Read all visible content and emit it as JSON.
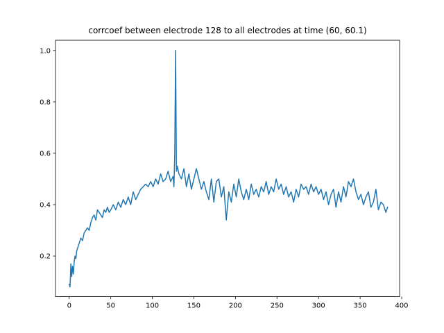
{
  "chart_data": {
    "type": "line",
    "title": "corrcoef between electrode 128 to all electrodes at time (60, 60.1)",
    "xlabel": "",
    "ylabel": "",
    "xlim": [
      -16.5,
      397.5
    ],
    "ylim": [
      0.042,
      1.04
    ],
    "x_ticks": [
      0,
      50,
      100,
      150,
      200,
      250,
      300,
      350,
      400
    ],
    "y_ticks": [
      0.2,
      0.4,
      0.6,
      0.8,
      1.0
    ],
    "x_tick_labels": [
      "0",
      "50",
      "100",
      "150",
      "200",
      "250",
      "300",
      "350",
      "400"
    ],
    "y_tick_labels": [
      "0.2",
      "0.4",
      "0.6",
      "0.8",
      "1.0"
    ],
    "grid": false,
    "series": [
      {
        "color": "#1f77b4",
        "x": [
          0,
          1,
          2,
          3,
          4,
          5,
          6,
          7,
          8,
          9,
          10,
          12,
          14,
          16,
          18,
          20,
          22,
          24,
          26,
          28,
          30,
          32,
          34,
          36,
          38,
          40,
          42,
          44,
          46,
          48,
          50,
          53,
          56,
          59,
          62,
          65,
          68,
          71,
          74,
          77,
          80,
          83,
          86,
          89,
          92,
          95,
          98,
          101,
          104,
          107,
          110,
          113,
          116,
          119,
          122,
          125,
          126,
          127,
          128,
          129,
          130,
          132,
          135,
          138,
          141,
          144,
          147,
          150,
          153,
          156,
          159,
          162,
          165,
          168,
          171,
          174,
          177,
          180,
          183,
          186,
          189,
          190,
          192,
          195,
          198,
          201,
          204,
          207,
          210,
          213,
          216,
          219,
          222,
          225,
          228,
          231,
          234,
          237,
          240,
          243,
          246,
          249,
          252,
          255,
          258,
          261,
          264,
          267,
          270,
          273,
          276,
          279,
          282,
          285,
          288,
          291,
          294,
          297,
          300,
          303,
          306,
          309,
          312,
          315,
          318,
          321,
          324,
          327,
          330,
          333,
          336,
          339,
          342,
          345,
          348,
          351,
          354,
          357,
          360,
          363,
          366,
          369,
          372,
          375,
          378,
          381,
          383
        ],
        "y": [
          0.09,
          0.08,
          0.17,
          0.12,
          0.16,
          0.13,
          0.18,
          0.2,
          0.19,
          0.22,
          0.23,
          0.25,
          0.27,
          0.26,
          0.29,
          0.3,
          0.31,
          0.3,
          0.33,
          0.35,
          0.36,
          0.34,
          0.38,
          0.37,
          0.36,
          0.35,
          0.38,
          0.37,
          0.39,
          0.37,
          0.38,
          0.4,
          0.38,
          0.41,
          0.39,
          0.42,
          0.4,
          0.43,
          0.4,
          0.45,
          0.42,
          0.44,
          0.46,
          0.47,
          0.48,
          0.47,
          0.49,
          0.47,
          0.5,
          0.48,
          0.52,
          0.49,
          0.5,
          0.53,
          0.49,
          0.51,
          0.47,
          0.6,
          1.0,
          0.53,
          0.55,
          0.52,
          0.5,
          0.54,
          0.47,
          0.52,
          0.46,
          0.5,
          0.54,
          0.5,
          0.46,
          0.49,
          0.45,
          0.42,
          0.5,
          0.41,
          0.49,
          0.5,
          0.43,
          0.47,
          0.34,
          0.38,
          0.45,
          0.41,
          0.48,
          0.43,
          0.5,
          0.45,
          0.42,
          0.46,
          0.42,
          0.48,
          0.44,
          0.46,
          0.43,
          0.47,
          0.45,
          0.49,
          0.44,
          0.47,
          0.45,
          0.5,
          0.46,
          0.48,
          0.44,
          0.47,
          0.43,
          0.45,
          0.41,
          0.46,
          0.43,
          0.48,
          0.46,
          0.47,
          0.44,
          0.48,
          0.45,
          0.47,
          0.44,
          0.46,
          0.42,
          0.45,
          0.4,
          0.44,
          0.46,
          0.39,
          0.45,
          0.41,
          0.47,
          0.43,
          0.49,
          0.47,
          0.5,
          0.45,
          0.42,
          0.44,
          0.4,
          0.43,
          0.45,
          0.39,
          0.41,
          0.46,
          0.38,
          0.41,
          0.4,
          0.37,
          0.39
        ]
      }
    ]
  }
}
